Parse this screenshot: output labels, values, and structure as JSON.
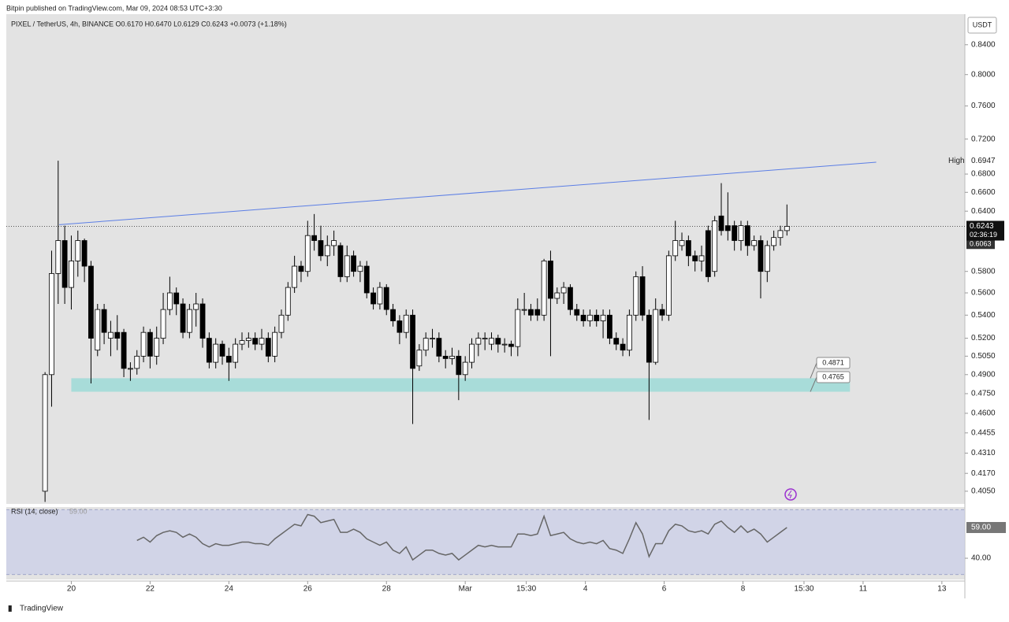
{
  "header": {
    "publisher": "Bitpin published on TradingView.com, Mar 09, 2024 08:53 UTC+3:30",
    "legend": "PIXEL / TetherUS, 4h, BINANCE  O0.6170  H0.6470  L0.6129  C0.6243  +0.0073 (+1.18%)",
    "currency": "USDT",
    "footer": "TradingView"
  },
  "chart_data": [
    {
      "type": "candlestick",
      "log_scale": true,
      "up_color": "#ffffff",
      "down_color": "#000000",
      "x": [
        0,
        1,
        2,
        3,
        4,
        5,
        6,
        7,
        8,
        9,
        10,
        11,
        12,
        13,
        14,
        15,
        16,
        17,
        18,
        19,
        20,
        21,
        22,
        23,
        24,
        25,
        26,
        27,
        28,
        29,
        30,
        31,
        32,
        33,
        34,
        35,
        36,
        37,
        38,
        39,
        40,
        41,
        42,
        43,
        44,
        45,
        46,
        47,
        48,
        49,
        50,
        51,
        52,
        53,
        54,
        55,
        56,
        57,
        58,
        59,
        60,
        61,
        62,
        63,
        64,
        65,
        66,
        67,
        68,
        69,
        70,
        71,
        72,
        73,
        74,
        75,
        76,
        77,
        78,
        79,
        80,
        81,
        82,
        83,
        84,
        85,
        86,
        87,
        88,
        89,
        90,
        91,
        92,
        93,
        94,
        95,
        96,
        97,
        98,
        99,
        100,
        101,
        102,
        103,
        104,
        105,
        106,
        107,
        108,
        109,
        110,
        111,
        112,
        113
      ],
      "open": [
        0.405,
        0.49,
        0.578,
        0.61,
        0.565,
        0.59,
        0.61,
        0.585,
        0.51,
        0.545,
        0.52,
        0.525,
        0.525,
        0.495,
        0.495,
        0.505,
        0.525,
        0.505,
        0.52,
        0.545,
        0.56,
        0.55,
        0.525,
        0.545,
        0.55,
        0.52,
        0.5,
        0.515,
        0.505,
        0.5,
        0.515,
        0.518,
        0.52,
        0.515,
        0.52,
        0.505,
        0.525,
        0.54,
        0.565,
        0.585,
        0.58,
        0.615,
        0.61,
        0.595,
        0.605,
        0.605,
        0.575,
        0.595,
        0.58,
        0.585,
        0.56,
        0.55,
        0.565,
        0.545,
        0.535,
        0.525,
        0.54,
        0.497,
        0.51,
        0.52,
        0.52,
        0.505,
        0.503,
        0.505,
        0.49,
        0.5,
        0.515,
        0.52,
        0.515,
        0.52,
        0.515,
        0.515,
        0.513,
        0.545,
        0.545,
        0.545,
        0.54,
        0.59,
        0.555,
        0.56,
        0.565,
        0.545,
        0.54,
        0.535,
        0.54,
        0.535,
        0.54,
        0.52,
        0.515,
        0.51,
        0.54,
        0.575,
        0.54,
        0.5,
        0.545,
        0.54,
        0.595,
        0.605,
        0.61,
        0.595,
        0.59,
        0.62,
        0.58,
        0.635,
        0.625,
        0.625,
        0.61,
        0.625,
        0.605,
        0.61,
        0.58,
        0.605,
        0.613,
        0.62
      ],
      "high": [
        0.492,
        0.6,
        0.695,
        0.625,
        0.615,
        0.62,
        0.612,
        0.59,
        0.55,
        0.55,
        0.535,
        0.54,
        0.528,
        0.5,
        0.51,
        0.53,
        0.528,
        0.53,
        0.56,
        0.575,
        0.565,
        0.555,
        0.55,
        0.56,
        0.555,
        0.525,
        0.52,
        0.518,
        0.512,
        0.52,
        0.525,
        0.525,
        0.525,
        0.528,
        0.525,
        0.53,
        0.545,
        0.57,
        0.595,
        0.59,
        0.63,
        0.637,
        0.625,
        0.615,
        0.62,
        0.608,
        0.605,
        0.6,
        0.59,
        0.59,
        0.565,
        0.57,
        0.568,
        0.55,
        0.54,
        0.545,
        0.545,
        0.515,
        0.525,
        0.528,
        0.525,
        0.51,
        0.512,
        0.51,
        0.505,
        0.52,
        0.525,
        0.525,
        0.525,
        0.523,
        0.52,
        0.518,
        0.555,
        0.56,
        0.55,
        0.555,
        0.592,
        0.6,
        0.565,
        0.57,
        0.568,
        0.55,
        0.545,
        0.545,
        0.545,
        0.545,
        0.545,
        0.525,
        0.52,
        0.545,
        0.58,
        0.585,
        0.545,
        0.555,
        0.55,
        0.6,
        0.63,
        0.618,
        0.615,
        0.6,
        0.605,
        0.625,
        0.635,
        0.67,
        0.66,
        0.63,
        0.63,
        0.63,
        0.615,
        0.615,
        0.61,
        0.62,
        0.625,
        0.647
      ],
      "low": [
        0.398,
        0.465,
        0.55,
        0.55,
        0.545,
        0.575,
        0.57,
        0.483,
        0.505,
        0.515,
        0.505,
        0.51,
        0.488,
        0.485,
        0.49,
        0.5,
        0.495,
        0.498,
        0.515,
        0.54,
        0.54,
        0.52,
        0.52,
        0.53,
        0.512,
        0.495,
        0.495,
        0.498,
        0.485,
        0.495,
        0.51,
        0.512,
        0.51,
        0.51,
        0.5,
        0.5,
        0.52,
        0.535,
        0.56,
        0.57,
        0.575,
        0.6,
        0.59,
        0.585,
        0.595,
        0.57,
        0.57,
        0.575,
        0.57,
        0.555,
        0.545,
        0.545,
        0.54,
        0.53,
        0.515,
        0.52,
        0.452,
        0.493,
        0.505,
        0.512,
        0.5,
        0.495,
        0.498,
        0.47,
        0.485,
        0.495,
        0.505,
        0.51,
        0.51,
        0.508,
        0.508,
        0.505,
        0.505,
        0.54,
        0.535,
        0.535,
        0.535,
        0.505,
        0.55,
        0.55,
        0.54,
        0.535,
        0.53,
        0.53,
        0.53,
        0.52,
        0.515,
        0.51,
        0.505,
        0.505,
        0.535,
        0.535,
        0.455,
        0.498,
        0.535,
        0.535,
        0.59,
        0.6,
        0.585,
        0.58,
        0.58,
        0.57,
        0.575,
        0.615,
        0.61,
        0.6,
        0.6,
        0.595,
        0.6,
        0.555,
        0.57,
        0.6,
        0.605,
        0.615
      ],
      "close": [
        0.49,
        0.578,
        0.61,
        0.565,
        0.59,
        0.61,
        0.585,
        0.52,
        0.545,
        0.525,
        0.525,
        0.52,
        0.495,
        0.495,
        0.505,
        0.525,
        0.505,
        0.52,
        0.545,
        0.56,
        0.55,
        0.525,
        0.545,
        0.55,
        0.52,
        0.5,
        0.515,
        0.505,
        0.5,
        0.515,
        0.518,
        0.52,
        0.515,
        0.52,
        0.505,
        0.525,
        0.54,
        0.565,
        0.585,
        0.58,
        0.615,
        0.61,
        0.595,
        0.605,
        0.61,
        0.575,
        0.595,
        0.58,
        0.585,
        0.56,
        0.55,
        0.565,
        0.545,
        0.535,
        0.525,
        0.54,
        0.495,
        0.51,
        0.52,
        0.52,
        0.505,
        0.503,
        0.505,
        0.49,
        0.5,
        0.515,
        0.52,
        0.52,
        0.52,
        0.515,
        0.515,
        0.513,
        0.545,
        0.545,
        0.54,
        0.54,
        0.59,
        0.555,
        0.56,
        0.565,
        0.545,
        0.54,
        0.535,
        0.54,
        0.535,
        0.54,
        0.52,
        0.515,
        0.51,
        0.54,
        0.575,
        0.54,
        0.5,
        0.545,
        0.54,
        0.595,
        0.61,
        0.61,
        0.595,
        0.59,
        0.595,
        0.575,
        0.63,
        0.62,
        0.62,
        0.61,
        0.625,
        0.605,
        0.61,
        0.58,
        0.605,
        0.613,
        0.62,
        0.6243
      ],
      "xlim": [
        -5.9,
        140.1
      ],
      "ylim": [
        0.3967,
        0.883
      ],
      "xticks": [
        {
          "value": 4,
          "label": "20"
        },
        {
          "value": 16,
          "label": "22"
        },
        {
          "value": 28,
          "label": "24"
        },
        {
          "value": 40,
          "label": "26"
        },
        {
          "value": 52,
          "label": "28"
        },
        {
          "value": 64,
          "label": "Mar"
        },
        {
          "value": 73.3,
          "label": "15:30"
        },
        {
          "value": 82.3,
          "label": "4"
        },
        {
          "value": 94.3,
          "label": "6"
        },
        {
          "value": 106.3,
          "label": "8"
        },
        {
          "value": 115.6,
          "label": "15:30"
        },
        {
          "value": 124.6,
          "label": "11"
        },
        {
          "value": 136.6,
          "label": "13"
        }
      ],
      "yticks": [
        {
          "value": 0.84,
          "label": "0.8400"
        },
        {
          "value": 0.8,
          "label": "0.8000"
        },
        {
          "value": 0.76,
          "label": "0.7600"
        },
        {
          "value": 0.72,
          "label": "0.7200"
        },
        {
          "value": 0.68,
          "label": "0.6800"
        },
        {
          "value": 0.66,
          "label": "0.6600"
        },
        {
          "value": 0.64,
          "label": "0.6400"
        },
        {
          "value": 0.58,
          "label": "0.5800"
        },
        {
          "value": 0.56,
          "label": "0.5600"
        },
        {
          "value": 0.54,
          "label": "0.5400"
        },
        {
          "value": 0.52,
          "label": "0.5200"
        },
        {
          "value": 0.505,
          "label": "0.5050"
        },
        {
          "value": 0.49,
          "label": "0.4900"
        },
        {
          "value": 0.475,
          "label": "0.4750"
        },
        {
          "value": 0.46,
          "label": "0.4600"
        },
        {
          "value": 0.4455,
          "label": "0.4455"
        },
        {
          "value": 0.431,
          "label": "0.4310"
        },
        {
          "value": 0.417,
          "label": "0.4170"
        },
        {
          "value": 0.405,
          "label": "0.4050"
        }
      ],
      "trend_line": {
        "x": [
          2.16,
          126.6
        ],
        "y": [
          0.626,
          0.6933
        ],
        "color": "#5b7ee5"
      },
      "zone": {
        "x": [
          4,
          122.6
        ],
        "top": 0.4871,
        "bottom": 0.4765,
        "color": "#a8dcd9"
      },
      "high_label": {
        "label": "High",
        "value": 0.6947
      },
      "last_price": 0.6243,
      "countdown": "02:36:19",
      "prev_price": 0.6063
    },
    {
      "type": "line",
      "title": "RSI (14, close)",
      "color": "#666666",
      "values": [
        null,
        null,
        null,
        null,
        null,
        null,
        null,
        null,
        null,
        null,
        null,
        null,
        null,
        null,
        51,
        53,
        50,
        54,
        56,
        57,
        56,
        53,
        55,
        53,
        49,
        47,
        49,
        48,
        48,
        49,
        50,
        50,
        49,
        49,
        48,
        52,
        55,
        58,
        61,
        60,
        67,
        66,
        62,
        63,
        64,
        56,
        56,
        58,
        56,
        52,
        50,
        48,
        50,
        45,
        43,
        47,
        39,
        42,
        45,
        45,
        43,
        42,
        43,
        39,
        42,
        45,
        48,
        47,
        48,
        47,
        47,
        47,
        55,
        55,
        54,
        55,
        66,
        54,
        55,
        56,
        52,
        50,
        49,
        50,
        49,
        51,
        46,
        45,
        43,
        52,
        62,
        55,
        41,
        49,
        49,
        57,
        61,
        60,
        57,
        56,
        57,
        55,
        61,
        63,
        59,
        56,
        60,
        56,
        58,
        55,
        50,
        53,
        56,
        59
      ],
      "value_label": {
        "value": 59,
        "label": "59.00"
      },
      "ylim": [
        29.8,
        69.7
      ],
      "yticks": [
        {
          "value": 40,
          "label": "40.00"
        }
      ],
      "bands": [
        70,
        30
      ]
    }
  ]
}
